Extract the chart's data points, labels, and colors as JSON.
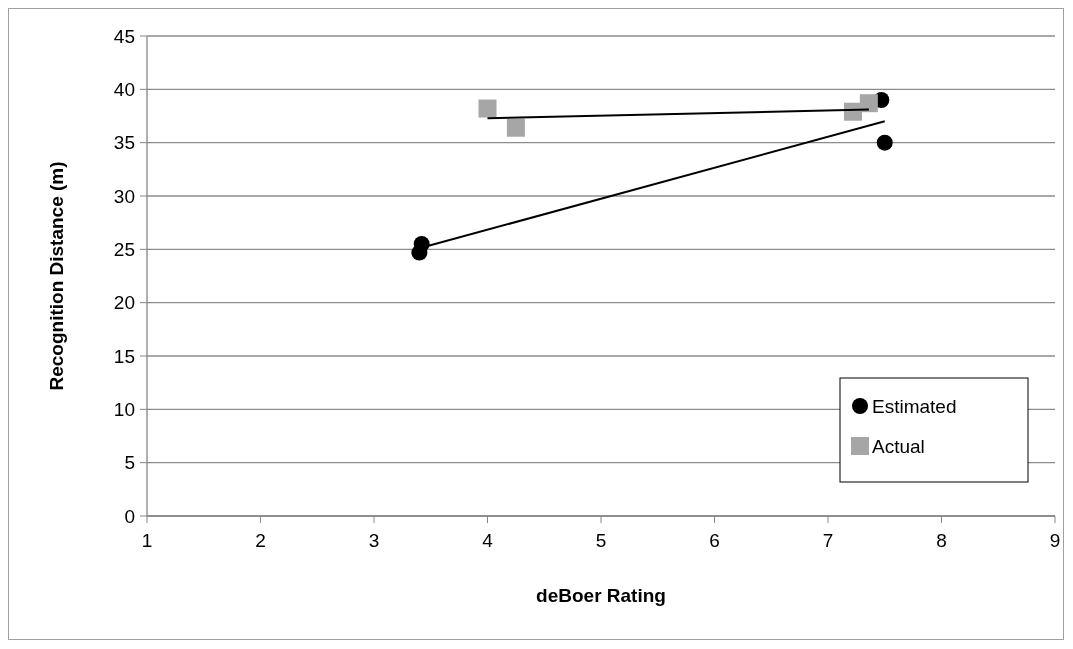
{
  "chart_data": {
    "type": "scatter",
    "xlabel": "deBoer Rating",
    "ylabel": "Recognition Distance (m)",
    "xlim": [
      1,
      9
    ],
    "xticks": [
      1,
      2,
      3,
      4,
      5,
      6,
      7,
      8,
      9
    ],
    "ylim": [
      0,
      45
    ],
    "yticks": [
      0,
      5,
      10,
      15,
      20,
      25,
      30,
      35,
      40,
      45
    ],
    "grid": "y",
    "legend": "bottom right",
    "series": [
      {
        "name": "Estimated",
        "color": "#000000",
        "marker": "circle",
        "x": [
          3.42,
          3.4,
          7.47,
          7.5
        ],
        "values": [
          25.5,
          24.7,
          39,
          35
        ]
      },
      {
        "name": "Actual",
        "color": "#a6a6a6",
        "marker": "square",
        "x": [
          4.0,
          4.25,
          7.22,
          7.36
        ],
        "values": [
          38.2,
          36.4,
          37.9,
          38.7
        ]
      },
      {
        "type": "line",
        "color": "#000000",
        "x": [
          3.4,
          7.5
        ],
        "values": [
          25.1,
          37.0
        ]
      },
      {
        "type": "line",
        "color": "#000000",
        "x": [
          4.0,
          7.36
        ],
        "values": [
          37.3,
          38.1
        ]
      }
    ]
  }
}
